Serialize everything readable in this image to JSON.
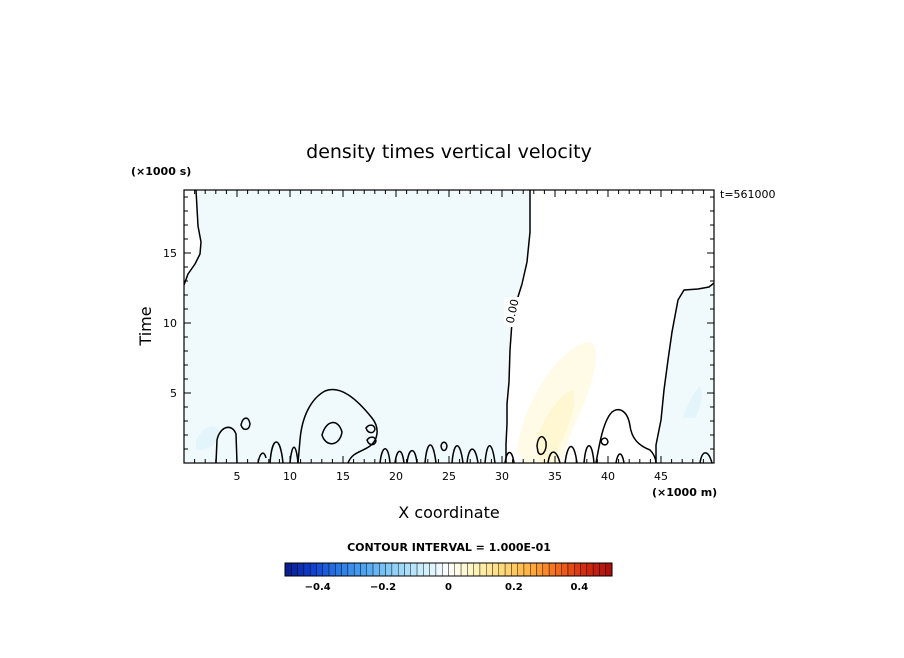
{
  "chart_data": {
    "type": "contour",
    "title": "density times vertical velocity",
    "xlabel": "X coordinate",
    "ylabel": "Time",
    "x_unit": "(×1000 m)",
    "y_unit": "(×1000 s)",
    "time_stamp": "t=561000",
    "xlim": [
      0,
      50
    ],
    "ylim": [
      0,
      19.5
    ],
    "x_ticks": [
      5,
      10,
      15,
      20,
      25,
      30,
      35,
      40,
      45
    ],
    "y_ticks": [
      5,
      10,
      15
    ],
    "zero_contour_label": "0.00",
    "contour_interval_text": "CONTOUR INTERVAL = 1.000E-01",
    "colorbar": {
      "min": -0.5,
      "max": 0.5,
      "ticks": [
        -0.4,
        -0.2,
        0,
        0.2,
        0.4
      ],
      "tick_labels": [
        "−0.4",
        "−0.2",
        "0",
        "0.2",
        "0.4"
      ],
      "colors_low_to_high": [
        "#0a1a8c",
        "#0f3fcf",
        "#2a7be6",
        "#52a7f0",
        "#8fd0f6",
        "#c8ecfb",
        "#ffffff",
        "#fff3b8",
        "#ffd97a",
        "#ffb040",
        "#f26a1a",
        "#d42a10",
        "#a80e0e"
      ]
    },
    "regions": [
      {
        "name": "negative-field",
        "value": -0.01,
        "color": "#f0fafd"
      },
      {
        "name": "positive-field",
        "value": 0.01,
        "color": "#ffffff"
      },
      {
        "name": "positive-plume",
        "value": 0.05,
        "color": "#fffbe6"
      },
      {
        "name": "positive-plume-core",
        "value": 0.08,
        "color": "#fff6d2"
      }
    ]
  }
}
